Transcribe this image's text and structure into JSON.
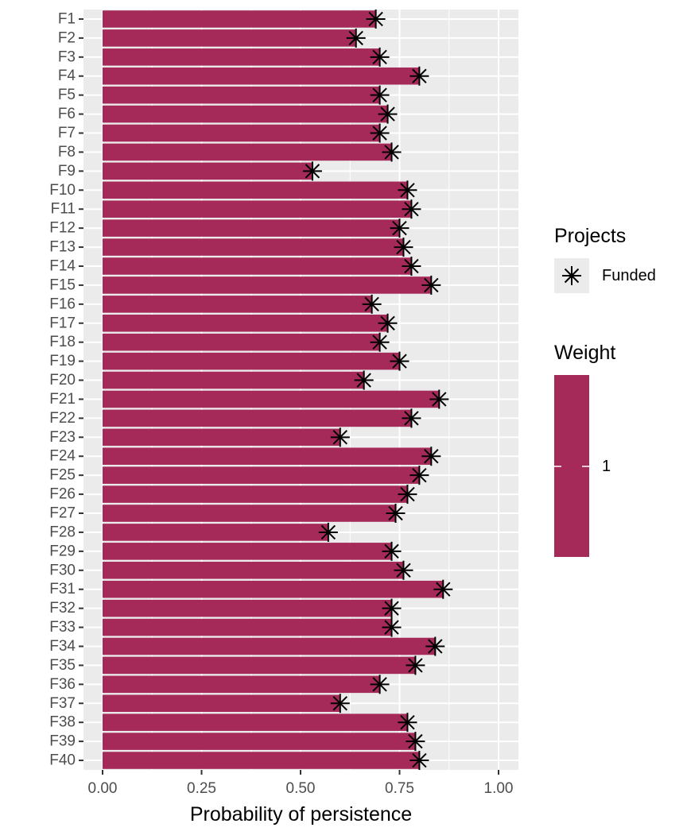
{
  "chart_data": {
    "type": "bar",
    "orientation": "horizontal",
    "title": "",
    "xlabel": "Probability of persistence",
    "ylabel": "",
    "xlim": [
      0,
      1.05
    ],
    "x_ticks": [
      "0.00",
      "0.25",
      "0.50",
      "0.75",
      "1.00"
    ],
    "x_tick_values": [
      0,
      0.25,
      0.5,
      0.75,
      1.0
    ],
    "categories": [
      "F1",
      "F2",
      "F3",
      "F4",
      "F5",
      "F6",
      "F7",
      "F8",
      "F9",
      "F10",
      "F11",
      "F12",
      "F13",
      "F14",
      "F15",
      "F16",
      "F17",
      "F18",
      "F19",
      "F20",
      "F21",
      "F22",
      "F23",
      "F24",
      "F25",
      "F26",
      "F27",
      "F28",
      "F29",
      "F30",
      "F31",
      "F32",
      "F33",
      "F34",
      "F35",
      "F36",
      "F37",
      "F38",
      "F39",
      "F40"
    ],
    "values": [
      0.69,
      0.64,
      0.7,
      0.8,
      0.7,
      0.72,
      0.7,
      0.73,
      0.53,
      0.77,
      0.78,
      0.75,
      0.76,
      0.78,
      0.83,
      0.68,
      0.72,
      0.7,
      0.75,
      0.66,
      0.85,
      0.78,
      0.6,
      0.83,
      0.8,
      0.77,
      0.74,
      0.57,
      0.73,
      0.76,
      0.86,
      0.73,
      0.73,
      0.84,
      0.79,
      0.7,
      0.6,
      0.77,
      0.79,
      0.8
    ],
    "points": [
      0.69,
      0.64,
      0.7,
      0.8,
      0.7,
      0.72,
      0.7,
      0.73,
      0.53,
      0.77,
      0.78,
      0.75,
      0.76,
      0.78,
      0.83,
      0.68,
      0.72,
      0.7,
      0.75,
      0.66,
      0.85,
      0.78,
      0.6,
      0.83,
      0.8,
      0.77,
      0.74,
      0.57,
      0.73,
      0.76,
      0.86,
      0.73,
      0.73,
      0.84,
      0.79,
      0.7,
      0.6,
      0.77,
      0.79,
      0.8
    ],
    "bar_color": "#a52a5a",
    "panel_background": "#ebebeb",
    "grid": true,
    "legend": {
      "placement": "right",
      "points_title": "Projects",
      "points_label": "Funded",
      "fill_title": "Weight",
      "fill_label": "1"
    }
  }
}
